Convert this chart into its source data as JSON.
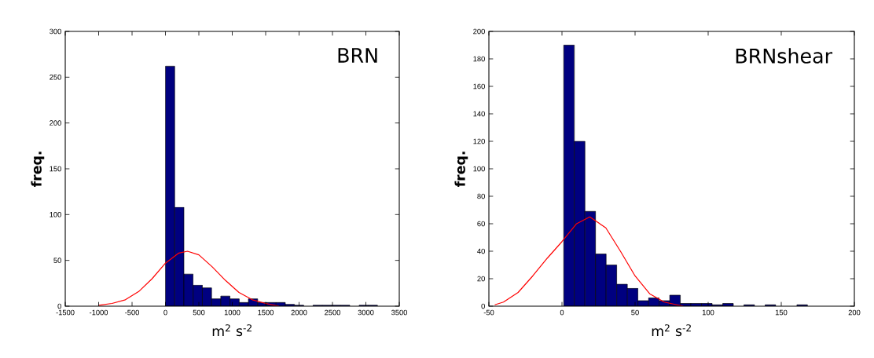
{
  "chart_data": [
    {
      "type": "histogram",
      "title": "BRN",
      "xlabel": "m$^{2}$ s$^{-2}$",
      "ylabel": "freq.",
      "color": "#000080",
      "bins": [
        0,
        138,
        276,
        414,
        552,
        690,
        828,
        966,
        1104,
        1242,
        1380,
        1518,
        1656,
        1794,
        1932,
        2070,
        2208,
        2346,
        2484,
        2622,
        2760,
        2898,
        3036,
        3174
      ],
      "values": [
        262,
        108,
        35,
        23,
        20,
        8,
        11,
        8,
        4,
        8,
        4,
        4,
        4,
        2,
        1,
        0,
        1,
        1,
        1,
        1,
        0,
        1,
        1
      ],
      "xlim": [
        -1500,
        3500
      ],
      "ylim": [
        0,
        300
      ],
      "xticks": [
        -1500,
        -1000,
        -500,
        0,
        500,
        1000,
        1500,
        2000,
        2500,
        3000,
        3500
      ],
      "yticks": [
        0,
        50,
        100,
        150,
        200,
        250,
        300
      ],
      "series": [
        {
          "type": "line",
          "color": "#ff0000",
          "x": [
            -1000,
            -800,
            -600,
            -400,
            -200,
            0,
            200,
            330,
            500,
            700,
            900,
            1100,
            1300,
            1500,
            1700
          ],
          "values": [
            1,
            3,
            7,
            16,
            30,
            47,
            58,
            60,
            56,
            43,
            28,
            15,
            7,
            3,
            0
          ]
        }
      ]
    },
    {
      "type": "histogram",
      "title": "BRNshear",
      "xlabel": "m$^{2}$ s$^{-2}$",
      "ylabel": "freq.",
      "color": "#000080",
      "bins": [
        1.2,
        8.45,
        15.7,
        22.95,
        30.2,
        37.45,
        44.7,
        51.95,
        59.2,
        66.45,
        73.7,
        80.95,
        88.2,
        95.45,
        102.7,
        109.95,
        117.2,
        124.45,
        131.7,
        138.95,
        146.2,
        153.45,
        160.7,
        167.95
      ],
      "values": [
        190,
        120,
        69,
        38,
        30,
        16,
        13,
        4,
        6,
        4,
        8,
        2,
        2,
        2,
        1,
        2,
        0,
        1,
        0,
        1,
        0,
        0,
        1
      ],
      "xlim": [
        -50,
        200
      ],
      "ylim": [
        0,
        200
      ],
      "xticks": [
        -50,
        0,
        50,
        100,
        150,
        200
      ],
      "yticks": [
        0,
        20,
        40,
        60,
        80,
        100,
        120,
        140,
        160,
        180,
        200
      ],
      "series": [
        {
          "type": "line",
          "color": "#ff0000",
          "x": [
            -46,
            -40,
            -30,
            -20,
            -10,
            0,
            10,
            19,
            30,
            40,
            50,
            60,
            70,
            83
          ],
          "values": [
            1,
            3,
            10,
            22,
            35,
            47,
            60,
            65,
            57,
            40,
            22,
            9,
            3,
            0
          ]
        }
      ]
    }
  ]
}
